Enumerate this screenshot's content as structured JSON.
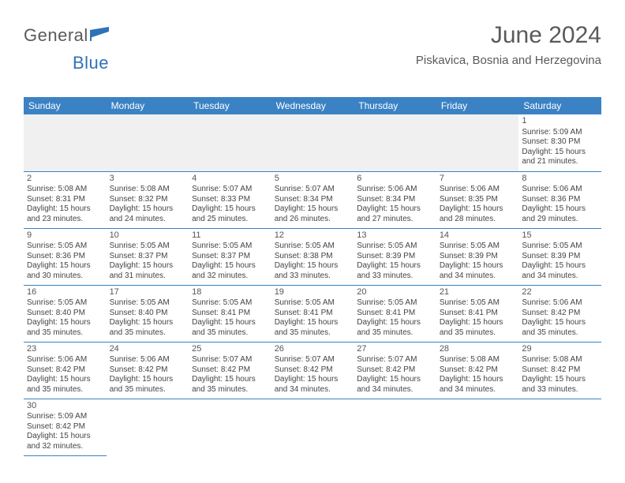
{
  "brand": {
    "part1": "General",
    "part2": "Blue"
  },
  "title": "June 2024",
  "location": "Piskavica, Bosnia and Herzegovina",
  "colors": {
    "header_bg": "#3b82c4",
    "header_text": "#ffffff",
    "border": "#3b82c4",
    "body_text": "#444444",
    "title_text": "#5a5a5a",
    "brand_accent": "#2f73b6",
    "empty_bg": "#f0f0f0",
    "page_bg": "#ffffff"
  },
  "typography": {
    "title_fontsize": 30,
    "location_fontsize": 15,
    "weekday_fontsize": 12,
    "cell_fontsize": 10,
    "daynum_fontsize": 11
  },
  "layout": {
    "columns": 7,
    "rows": 6,
    "first_day_column_index": 6,
    "total_days": 30
  },
  "weekdays": [
    "Sunday",
    "Monday",
    "Tuesday",
    "Wednesday",
    "Thursday",
    "Friday",
    "Saturday"
  ],
  "days": [
    {
      "n": 1,
      "sunrise": "5:09 AM",
      "sunset": "8:30 PM",
      "daylight": "15 hours and 21 minutes."
    },
    {
      "n": 2,
      "sunrise": "5:08 AM",
      "sunset": "8:31 PM",
      "daylight": "15 hours and 23 minutes."
    },
    {
      "n": 3,
      "sunrise": "5:08 AM",
      "sunset": "8:32 PM",
      "daylight": "15 hours and 24 minutes."
    },
    {
      "n": 4,
      "sunrise": "5:07 AM",
      "sunset": "8:33 PM",
      "daylight": "15 hours and 25 minutes."
    },
    {
      "n": 5,
      "sunrise": "5:07 AM",
      "sunset": "8:34 PM",
      "daylight": "15 hours and 26 minutes."
    },
    {
      "n": 6,
      "sunrise": "5:06 AM",
      "sunset": "8:34 PM",
      "daylight": "15 hours and 27 minutes."
    },
    {
      "n": 7,
      "sunrise": "5:06 AM",
      "sunset": "8:35 PM",
      "daylight": "15 hours and 28 minutes."
    },
    {
      "n": 8,
      "sunrise": "5:06 AM",
      "sunset": "8:36 PM",
      "daylight": "15 hours and 29 minutes."
    },
    {
      "n": 9,
      "sunrise": "5:05 AM",
      "sunset": "8:36 PM",
      "daylight": "15 hours and 30 minutes."
    },
    {
      "n": 10,
      "sunrise": "5:05 AM",
      "sunset": "8:37 PM",
      "daylight": "15 hours and 31 minutes."
    },
    {
      "n": 11,
      "sunrise": "5:05 AM",
      "sunset": "8:37 PM",
      "daylight": "15 hours and 32 minutes."
    },
    {
      "n": 12,
      "sunrise": "5:05 AM",
      "sunset": "8:38 PM",
      "daylight": "15 hours and 33 minutes."
    },
    {
      "n": 13,
      "sunrise": "5:05 AM",
      "sunset": "8:39 PM",
      "daylight": "15 hours and 33 minutes."
    },
    {
      "n": 14,
      "sunrise": "5:05 AM",
      "sunset": "8:39 PM",
      "daylight": "15 hours and 34 minutes."
    },
    {
      "n": 15,
      "sunrise": "5:05 AM",
      "sunset": "8:39 PM",
      "daylight": "15 hours and 34 minutes."
    },
    {
      "n": 16,
      "sunrise": "5:05 AM",
      "sunset": "8:40 PM",
      "daylight": "15 hours and 35 minutes."
    },
    {
      "n": 17,
      "sunrise": "5:05 AM",
      "sunset": "8:40 PM",
      "daylight": "15 hours and 35 minutes."
    },
    {
      "n": 18,
      "sunrise": "5:05 AM",
      "sunset": "8:41 PM",
      "daylight": "15 hours and 35 minutes."
    },
    {
      "n": 19,
      "sunrise": "5:05 AM",
      "sunset": "8:41 PM",
      "daylight": "15 hours and 35 minutes."
    },
    {
      "n": 20,
      "sunrise": "5:05 AM",
      "sunset": "8:41 PM",
      "daylight": "15 hours and 35 minutes."
    },
    {
      "n": 21,
      "sunrise": "5:05 AM",
      "sunset": "8:41 PM",
      "daylight": "15 hours and 35 minutes."
    },
    {
      "n": 22,
      "sunrise": "5:06 AM",
      "sunset": "8:42 PM",
      "daylight": "15 hours and 35 minutes."
    },
    {
      "n": 23,
      "sunrise": "5:06 AM",
      "sunset": "8:42 PM",
      "daylight": "15 hours and 35 minutes."
    },
    {
      "n": 24,
      "sunrise": "5:06 AM",
      "sunset": "8:42 PM",
      "daylight": "15 hours and 35 minutes."
    },
    {
      "n": 25,
      "sunrise": "5:07 AM",
      "sunset": "8:42 PM",
      "daylight": "15 hours and 35 minutes."
    },
    {
      "n": 26,
      "sunrise": "5:07 AM",
      "sunset": "8:42 PM",
      "daylight": "15 hours and 34 minutes."
    },
    {
      "n": 27,
      "sunrise": "5:07 AM",
      "sunset": "8:42 PM",
      "daylight": "15 hours and 34 minutes."
    },
    {
      "n": 28,
      "sunrise": "5:08 AM",
      "sunset": "8:42 PM",
      "daylight": "15 hours and 34 minutes."
    },
    {
      "n": 29,
      "sunrise": "5:08 AM",
      "sunset": "8:42 PM",
      "daylight": "15 hours and 33 minutes."
    },
    {
      "n": 30,
      "sunrise": "5:09 AM",
      "sunset": "8:42 PM",
      "daylight": "15 hours and 32 minutes."
    }
  ],
  "labels": {
    "sunrise_prefix": "Sunrise: ",
    "sunset_prefix": "Sunset: ",
    "daylight_prefix": "Daylight: "
  }
}
